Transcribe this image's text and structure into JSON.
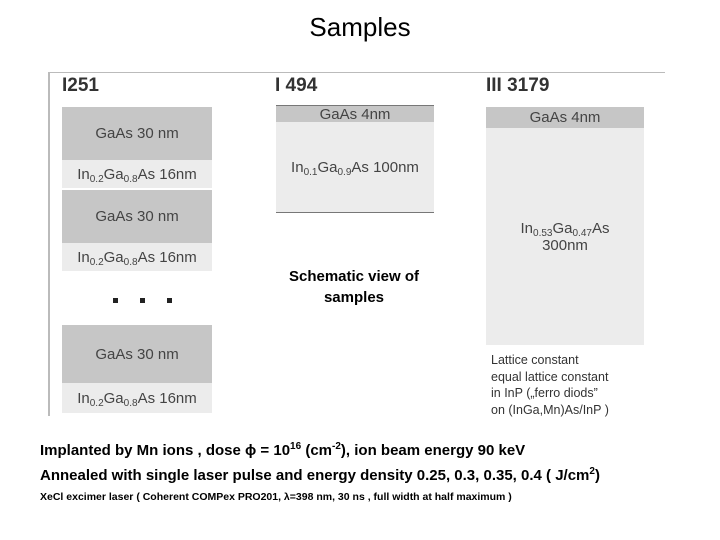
{
  "title": "Samples",
  "samples": [
    {
      "name": "I251",
      "layers": [
        {
          "label": [
            [
              {
                "text": "GaAs 30 nm"
              }
            ]
          ]
        },
        {
          "label": [
            [
              {
                "text": "In"
              },
              {
                "sub": "0.2"
              },
              {
                "text": "Ga"
              },
              {
                "sub": "0.8"
              },
              {
                "text": "As 16nm"
              }
            ]
          ]
        },
        {
          "label": [
            [
              {
                "text": "GaAs 30 nm"
              }
            ]
          ]
        },
        {
          "label": [
            [
              {
                "text": "In"
              },
              {
                "sub": "0.2"
              },
              {
                "text": "Ga"
              },
              {
                "sub": "0.8"
              },
              {
                "text": "As 16nm"
              }
            ]
          ]
        },
        {
          "label": [
            [
              {
                "text": "GaAs 30 nm"
              }
            ]
          ]
        },
        {
          "label": [
            [
              {
                "text": "In"
              },
              {
                "sub": "0.2"
              },
              {
                "text": "Ga"
              },
              {
                "sub": "0.8"
              },
              {
                "text": "As 16nm"
              }
            ]
          ]
        }
      ]
    },
    {
      "name": "I 494",
      "layers": [
        {
          "label": [
            [
              {
                "text": "GaAs 4nm"
              }
            ]
          ]
        },
        {
          "label": [
            [
              {
                "text": "In"
              },
              {
                "sub": "0.1"
              },
              {
                "text": "Ga"
              },
              {
                "sub": "0.9"
              },
              {
                "text": "As 100nm"
              }
            ]
          ]
        }
      ]
    },
    {
      "name": "III 3179",
      "layers": [
        {
          "label": [
            [
              {
                "text": "GaAs 4nm"
              }
            ]
          ]
        },
        {
          "label": [
            [
              {
                "text": "In"
              },
              {
                "sub": "0.53"
              },
              {
                "text": "Ga"
              },
              {
                "sub": "0.47"
              },
              {
                "text": "As"
              }
            ],
            [
              {
                "text": "300nm"
              }
            ]
          ]
        }
      ]
    }
  ],
  "caption": [
    "Schematic view of",
    "samples"
  ],
  "note": [
    "Lattice constant",
    "equal lattice constant",
    "in InP („ferro diods”",
    "on (InGa,Mn)As/InP )"
  ],
  "description": [
    [
      {
        "text": "Implanted by Mn ions , dose ϕ = 10"
      },
      {
        "sup": "16"
      },
      {
        "text": " (cm"
      },
      {
        "sup": "-2"
      },
      {
        "text": "), ion beam energy 90 keV"
      }
    ],
    [
      {
        "text": "Annealed with single laser pulse and energy density 0.25, 0.3, 0.35, 0.4 ( J/cm"
      },
      {
        "sup": "2"
      },
      {
        "text": ")"
      }
    ],
    [
      {
        "text": "XeCl excimer laser ( Coherent COMPex PRO201, λ=398 nm, 30 ns , full width at half maximum )"
      }
    ]
  ]
}
